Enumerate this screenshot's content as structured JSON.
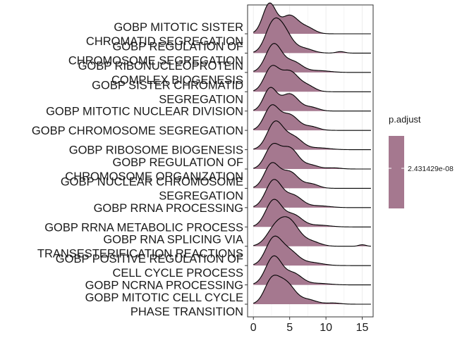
{
  "chart_data": {
    "type": "ridgeline",
    "xlim": [
      -0.8,
      16.5
    ],
    "x_ticks": [
      0,
      5,
      10,
      15
    ],
    "grid": true,
    "fill_color": "#a5788f",
    "legend": {
      "title": "p.adjust",
      "label": "2.431429e-08",
      "color": "#a5788f",
      "placement": "right"
    },
    "categories": [
      {
        "label": [
          "GOBP MITOTIC SISTER",
          "CHROMATID SEGREGATION"
        ],
        "peaks": [
          [
            2.2,
            1.0,
            0.9
          ],
          [
            5.0,
            0.62,
            1.2
          ],
          [
            7.5,
            0.18,
            1.0
          ]
        ],
        "xmax": 16.2
      },
      {
        "label": [
          "GOBP REGULATION OF",
          "CHROMOSOME SEGREGATION"
        ],
        "peaks": [
          [
            2.5,
            0.7,
            1.0
          ],
          [
            4.0,
            0.8,
            1.2
          ],
          [
            7.0,
            0.15,
            1.2
          ],
          [
            12.0,
            0.05,
            0.6
          ]
        ],
        "xmax": 16.2
      },
      {
        "label": [
          "GOBP RIBONUCLEOPROTEIN",
          "COMPLEX BIOGENESIS"
        ],
        "peaks": [
          [
            2.8,
            0.95,
            1.1
          ],
          [
            5.5,
            0.35,
            1.2
          ],
          [
            9.0,
            0.06,
            1.5
          ]
        ],
        "xmax": 16.2
      },
      {
        "label": [
          "GOBP SISTER CHROMATID",
          "SEGREGATION"
        ],
        "peaks": [
          [
            2.5,
            0.8,
            1.0
          ],
          [
            5.0,
            0.68,
            1.2
          ],
          [
            7.5,
            0.18,
            1.0
          ]
        ],
        "xmax": 16.2
      },
      {
        "label": [
          "GOBP MITOTIC NUCLEAR DIVISION"
        ],
        "peaks": [
          [
            2.3,
            0.75,
            0.9
          ],
          [
            5.0,
            0.58,
            1.2
          ],
          [
            8.0,
            0.12,
            1.0
          ]
        ],
        "xmax": 16.2
      },
      {
        "label": [
          "GOBP CHROMOSOME SEGREGATION"
        ],
        "peaks": [
          [
            2.5,
            0.8,
            1.0
          ],
          [
            5.0,
            0.52,
            1.2
          ],
          [
            8.0,
            0.12,
            1.0
          ]
        ],
        "xmax": 16.2
      },
      {
        "label": [
          "GOBP RIBOSOME BIOGENESIS"
        ],
        "peaks": [
          [
            3.0,
            0.92,
            1.1
          ],
          [
            5.5,
            0.42,
            1.2
          ],
          [
            9.0,
            0.06,
            1.5
          ]
        ],
        "xmax": 16.2
      },
      {
        "label": [
          "GOBP REGULATION OF",
          "CHROMOSOME ORGANIZATION"
        ],
        "peaks": [
          [
            2.6,
            0.75,
            1.0
          ],
          [
            5.0,
            0.7,
            1.2
          ],
          [
            8.0,
            0.12,
            1.0
          ],
          [
            11.0,
            0.04,
            1.0
          ]
        ],
        "xmax": 16.2
      },
      {
        "label": [
          "GOBP NUCLEAR CHROMOSOME",
          "SEGREGATION"
        ],
        "peaks": [
          [
            2.5,
            0.8,
            1.0
          ],
          [
            5.0,
            0.55,
            1.2
          ],
          [
            8.0,
            0.14,
            1.0
          ]
        ],
        "xmax": 16.2
      },
      {
        "label": [
          "GOBP RRNA PROCESSING"
        ],
        "peaks": [
          [
            2.8,
            0.92,
            1.1
          ],
          [
            5.5,
            0.4,
            1.2
          ],
          [
            9.0,
            0.06,
            1.5
          ]
        ],
        "xmax": 16.2
      },
      {
        "label": [
          "GOBP RRNA METABOLIC PROCESS"
        ],
        "peaks": [
          [
            2.8,
            0.9,
            1.1
          ],
          [
            5.5,
            0.4,
            1.2
          ],
          [
            9.0,
            0.06,
            1.5
          ]
        ],
        "xmax": 16.2
      },
      {
        "label": [
          "GOBP RNA SPLICING VIA",
          "TRANSESTERIFICATION REACTIONS"
        ],
        "peaks": [
          [
            3.0,
            0.55,
            1.2
          ],
          [
            5.0,
            0.8,
            1.3
          ],
          [
            8.0,
            0.15,
            1.2
          ],
          [
            15.0,
            0.05,
            0.5
          ]
        ],
        "xmax": 16.2
      },
      {
        "label": [
          "GOBP POSITIVE REGULATION OF",
          "CELL CYCLE PROCESS"
        ],
        "peaks": [
          [
            2.8,
            0.9,
            1.1
          ],
          [
            5.0,
            0.45,
            1.2
          ],
          [
            8.0,
            0.1,
            1.5
          ]
        ],
        "xmax": 16.2
      },
      {
        "label": [
          "GOBP NCRNA PROCESSING"
        ],
        "peaks": [
          [
            2.8,
            0.95,
            1.1
          ],
          [
            5.5,
            0.38,
            1.2
          ],
          [
            9.0,
            0.05,
            1.5
          ]
        ],
        "xmax": 16.2
      },
      {
        "label": [
          "GOBP MITOTIC CELL CYCLE",
          "PHASE TRANSITION"
        ],
        "peaks": [
          [
            2.5,
            0.75,
            1.0
          ],
          [
            4.5,
            0.7,
            1.2
          ],
          [
            7.5,
            0.15,
            1.2
          ],
          [
            11.0,
            0.04,
            1.0
          ]
        ],
        "xmax": 16.2
      }
    ]
  }
}
